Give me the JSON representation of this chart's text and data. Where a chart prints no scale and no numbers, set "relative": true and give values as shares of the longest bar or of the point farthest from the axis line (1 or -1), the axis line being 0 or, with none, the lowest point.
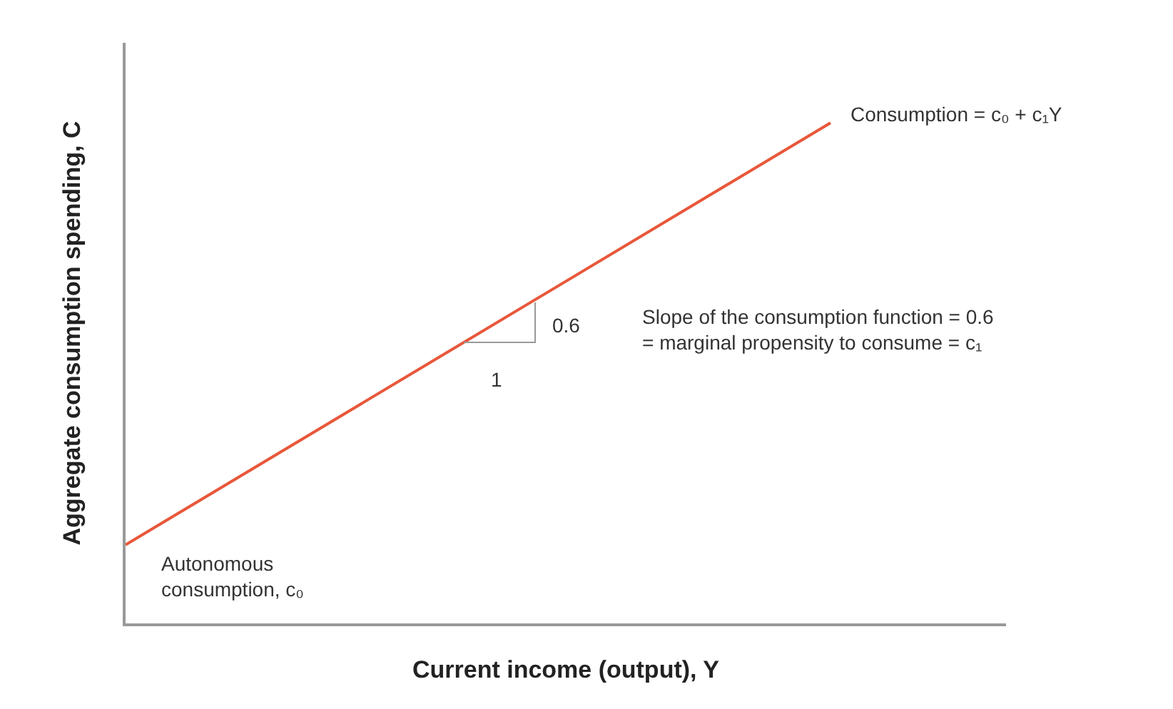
{
  "chart_data": {
    "type": "line",
    "relative": true,
    "categories": [
      null,
      null
    ],
    "xlabel": "Current income (output), Y",
    "ylabel": "Aggregate consumption spending, C",
    "series": [
      {
        "color": "#e8573a",
        "values": [
          0.157,
          1
        ]
      }
    ],
    "annotations": [
      "Consumption = c₀ + c₁Y",
      "Slope of the consumption function = 0.6\n= marginal propensity to consume = c₁",
      "Autonomous\nconsumption, c₀",
      "0.6",
      "1"
    ],
    "marker": "none",
    "line_style": "solid",
    "tick_labels": false
  }
}
